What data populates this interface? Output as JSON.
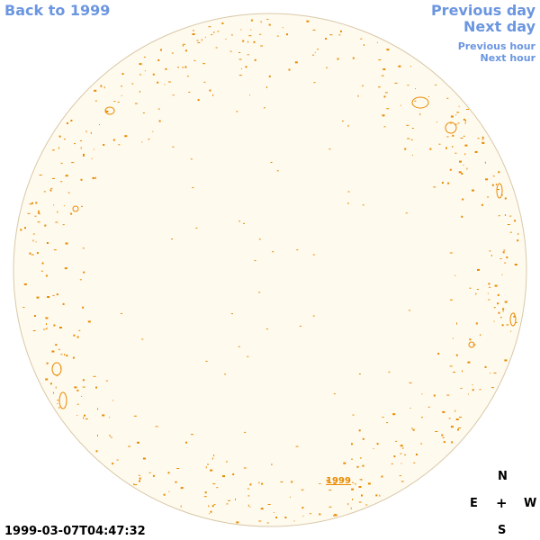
{
  "nav": {
    "back_label": "Back to 1999",
    "previous_day": "Previous day",
    "next_day": "Next day",
    "previous_hour": "Previous hour",
    "next_hour": "Next hour"
  },
  "disk": {
    "fill_color": "#fffaee",
    "border_color": "#d8c8a8",
    "contour_color": "#e88a00",
    "year_label": "1999"
  },
  "compass": {
    "north": "N",
    "east": "E",
    "center": "+",
    "west": "W",
    "south": "S"
  },
  "timestamp": "1999-03-07T04:47:32",
  "colors": {
    "link": "#6b96e0"
  }
}
